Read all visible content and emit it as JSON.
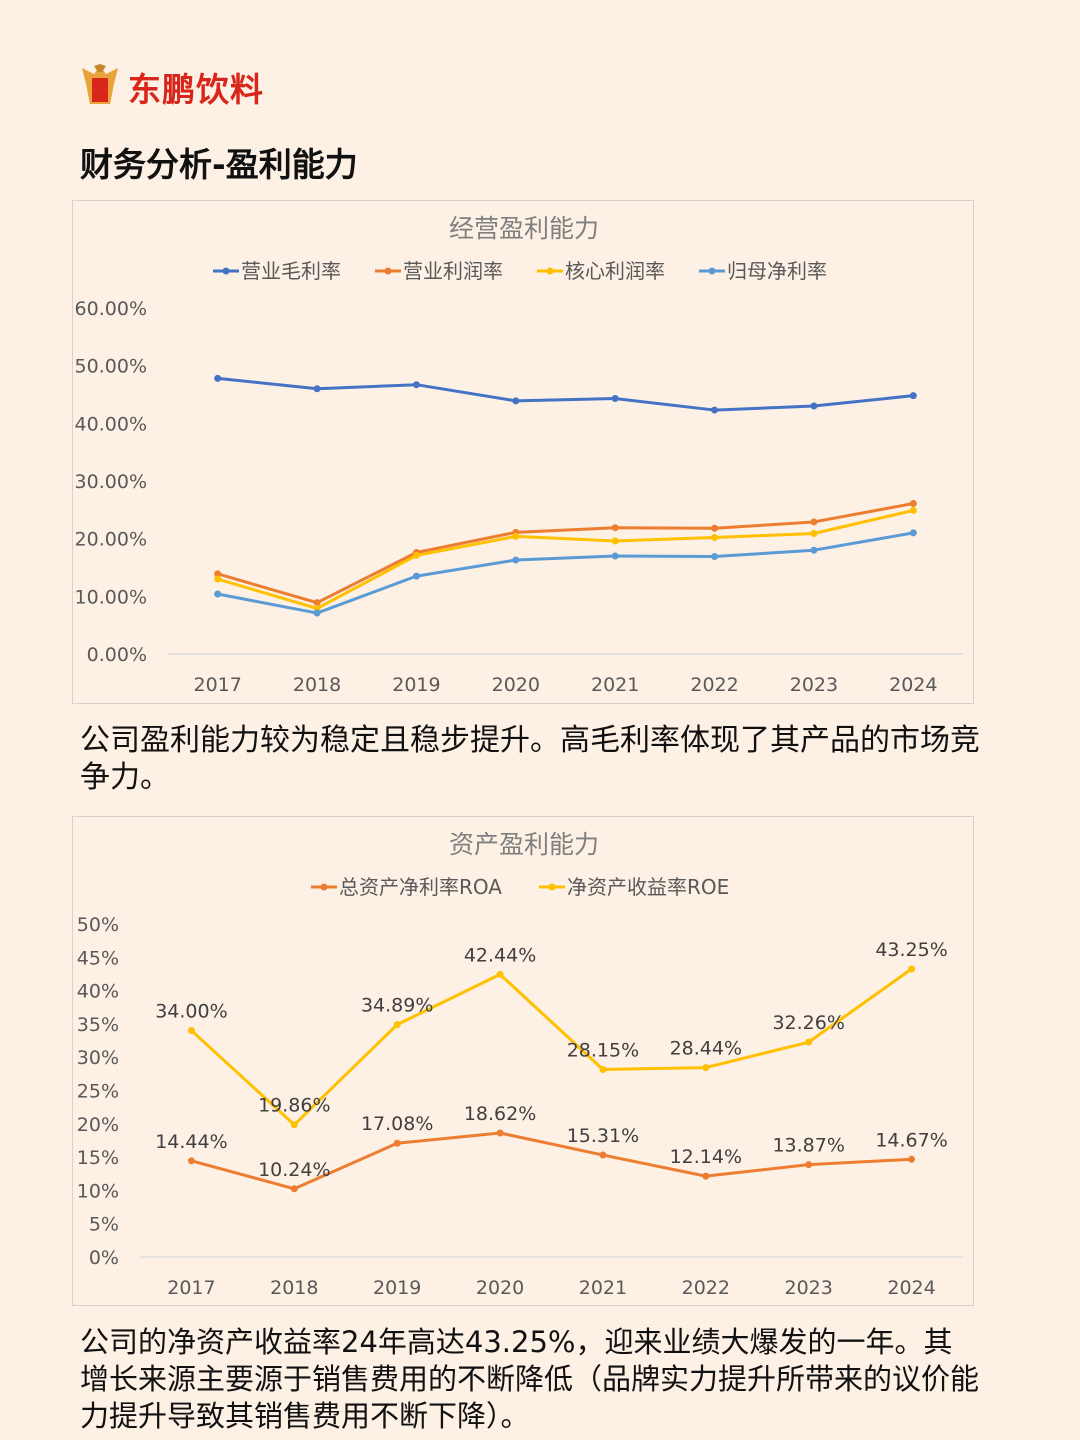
{
  "brand": {
    "name": "东鹏饮料",
    "logo_icon": "eagle-logo-icon",
    "color": "#d8261b"
  },
  "page_title": "财务分析-盈利能力",
  "chart1": {
    "title": "经营盈利能力",
    "chart_data": {
      "type": "line",
      "title": "经营盈利能力",
      "x": [
        "2017",
        "2018",
        "2019",
        "2020",
        "2021",
        "2022",
        "2023",
        "2024"
      ],
      "y_ticks": [
        "0.00%",
        "10.00%",
        "20.00%",
        "30.00%",
        "40.00%",
        "50.00%",
        "60.00%"
      ],
      "ylim": [
        0,
        60
      ],
      "legend_position": "top",
      "grid": false,
      "series": [
        {
          "name": "营业毛利率",
          "color": "#4472c4",
          "values": [
            47.8,
            46.0,
            46.7,
            43.9,
            44.3,
            42.3,
            43.0,
            44.8
          ]
        },
        {
          "name": "营业利润率",
          "color": "#ed7d31",
          "values": [
            13.9,
            8.9,
            17.6,
            21.1,
            21.9,
            21.8,
            22.9,
            26.1
          ]
        },
        {
          "name": "核心利润率",
          "color": "#ffc000",
          "values": [
            13.0,
            7.9,
            17.1,
            20.4,
            19.6,
            20.2,
            20.9,
            24.9
          ]
        },
        {
          "name": "归母净利率",
          "color": "#5b9bd5",
          "values": [
            10.4,
            7.1,
            13.5,
            16.3,
            17.0,
            16.9,
            18.0,
            21.0
          ]
        }
      ]
    }
  },
  "para1": "公司盈利能力较为稳定且稳步提升。高毛利率体现了其产品的市场竞争力。",
  "chart2": {
    "title": "资产盈利能力",
    "chart_data": {
      "type": "line",
      "title": "资产盈利能力",
      "x": [
        "2017",
        "2018",
        "2019",
        "2020",
        "2021",
        "2022",
        "2023",
        "2024"
      ],
      "y_ticks": [
        "0%",
        "5%",
        "10%",
        "15%",
        "20%",
        "25%",
        "30%",
        "35%",
        "40%",
        "45%",
        "50%"
      ],
      "ylim": [
        0,
        50
      ],
      "legend_position": "top",
      "grid": false,
      "series": [
        {
          "name": "总资产净利率ROA",
          "color": "#ed7d31",
          "values": [
            14.44,
            10.24,
            17.08,
            18.62,
            15.31,
            12.14,
            13.87,
            14.67
          ],
          "labels": [
            "14.44%",
            "10.24%",
            "17.08%",
            "18.62%",
            "15.31%",
            "12.14%",
            "13.87%",
            "14.67%"
          ]
        },
        {
          "name": "净资产收益率ROE",
          "color": "#ffc000",
          "values": [
            34.0,
            19.86,
            34.89,
            42.44,
            28.15,
            28.44,
            32.26,
            43.25
          ],
          "labels": [
            "34.00%",
            "19.86%",
            "34.89%",
            "42.44%",
            "28.15%",
            "28.44%",
            "32.26%",
            "43.25%"
          ]
        }
      ]
    }
  },
  "para2": "公司的净资产收益率24年高达43.25%，迎来业绩大爆发的一年。其增长来源主要源于销售费用的不断降低（品牌实力提升所带来的议价能力提升导致其销售费用不断下降）。"
}
